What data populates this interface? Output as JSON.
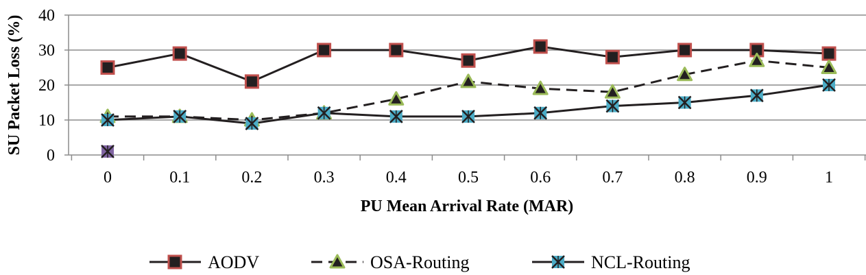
{
  "chart_data": {
    "type": "line",
    "title": "",
    "xlabel": "PU Mean Arrival Rate (MAR)",
    "ylabel": "SU Packet Loss (%)",
    "x": [
      0,
      0.1,
      0.2,
      0.3,
      0.4,
      0.5,
      0.6,
      0.7,
      0.8,
      0.9,
      1
    ],
    "x_tick_labels": [
      "0",
      "0.1",
      "0.2",
      "0.3",
      "0.4",
      "0.5",
      "0.6",
      "0.7",
      "0.8",
      "0.9",
      "1"
    ],
    "ylim": [
      0,
      40
    ],
    "y_ticks": [
      0,
      10,
      20,
      30,
      40
    ],
    "y_tick_labels": [
      "0",
      "10",
      "20",
      "30",
      "40"
    ],
    "grid": "horizontal",
    "legend_position": "bottom",
    "series": [
      {
        "name": "AODV",
        "line_style": "solid",
        "marker": "square",
        "marker_fill": "#231f20",
        "marker_edge": "#c0504d",
        "values": [
          25,
          29,
          21,
          30,
          30,
          27,
          31,
          28,
          30,
          30,
          29
        ]
      },
      {
        "name": "OSA-Routing",
        "line_style": "dashed",
        "marker": "triangle",
        "marker_fill": "#231f20",
        "marker_edge": "#9bbb59",
        "values": [
          11,
          11,
          10,
          12,
          16,
          21,
          19,
          18,
          23,
          27,
          25
        ]
      },
      {
        "name": "NCL-Routing",
        "line_style": "solid",
        "marker": "x-box",
        "marker_fill": "#4bacc6",
        "marker_edge": "#231f20",
        "values": [
          10,
          11,
          9,
          12,
          11,
          11,
          12,
          14,
          15,
          17,
          20
        ]
      }
    ],
    "extra_points": [
      {
        "x": 0,
        "y": 1,
        "marker": "x-box",
        "marker_fill": "#8064a2",
        "marker_edge": "#231f20"
      }
    ]
  }
}
